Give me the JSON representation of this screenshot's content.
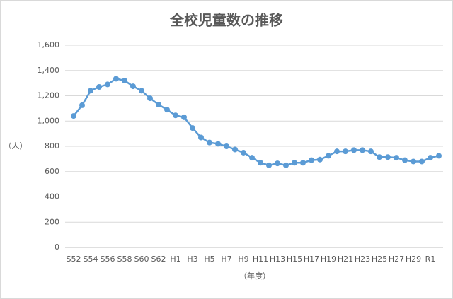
{
  "chart_data": {
    "type": "line",
    "title": "全校児童数の推移",
    "x_label": "（年度）",
    "y_label": "（人）",
    "categories": [
      "S52",
      null,
      "S54",
      null,
      "S56",
      null,
      "S58",
      null,
      "S60",
      null,
      "S62",
      null,
      "H1",
      null,
      "H3",
      null,
      "H5",
      null,
      "H7",
      null,
      "H9",
      null,
      "H11",
      null,
      "H13",
      null,
      "H15",
      null,
      "H17",
      null,
      "H19",
      null,
      "H21",
      null,
      "H23",
      null,
      "H25",
      null,
      "H27",
      null,
      "H29",
      null,
      "R1",
      null
    ],
    "series": [
      {
        "name": "全校児童数",
        "color": "#5b9bd5",
        "values": [
          1040,
          1125,
          1240,
          1270,
          1290,
          1335,
          1320,
          1275,
          1240,
          1180,
          1130,
          1090,
          1045,
          1030,
          945,
          870,
          830,
          820,
          800,
          775,
          750,
          710,
          670,
          650,
          665,
          650,
          670,
          670,
          690,
          695,
          725,
          760,
          760,
          770,
          770,
          760,
          715,
          715,
          710,
          690,
          680,
          680,
          710,
          725
        ]
      }
    ],
    "ylim": [
      0,
      1600
    ],
    "yticks": [
      0,
      200,
      400,
      600,
      800,
      {
        "value": 1000,
        "label": "1,000"
      },
      {
        "value": 1200,
        "label": "1,200"
      },
      {
        "value": 1400,
        "label": "1,400"
      },
      {
        "value": 1600,
        "label": "1,600"
      }
    ],
    "grid": true
  }
}
